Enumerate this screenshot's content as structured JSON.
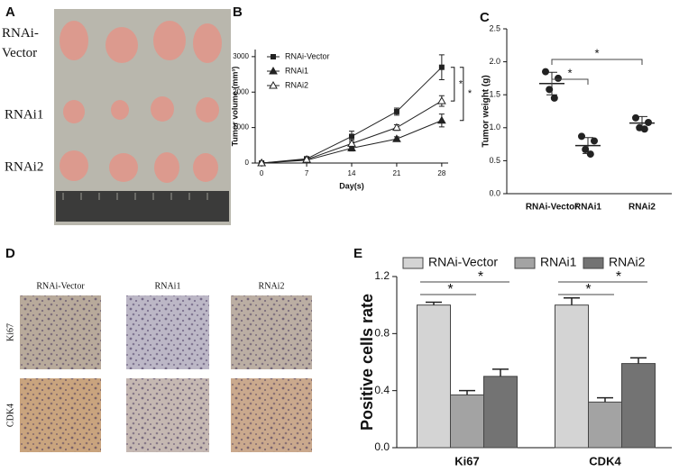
{
  "panel_labels": [
    "A",
    "B",
    "C",
    "D",
    "E"
  ],
  "photo_a": {
    "rows": [
      "RNAi-Vector",
      "RNAi1",
      "RNAi2"
    ]
  },
  "photo_d": {
    "columns": [
      "RNAi-Vector",
      "RNAi1",
      "RNAi2"
    ],
    "rows": [
      "Ki67",
      "CDK4"
    ]
  },
  "chart_data": [
    {
      "type": "line",
      "x_label": "Day(s)",
      "y_label": "Tumor volume (mm³)",
      "x": [
        0,
        7,
        14,
        21,
        28
      ],
      "xlim": [
        -1,
        29
      ],
      "xticks": [
        0,
        7,
        14,
        21,
        28
      ],
      "ylim": [
        0,
        3200
      ],
      "yticks": [
        0,
        1000,
        2000,
        3000
      ],
      "series": [
        {
          "name": "RNAi-Vector",
          "color": "#222222",
          "marker": "square",
          "values": [
            0,
            120,
            750,
            1450,
            2700
          ],
          "errors": [
            20,
            40,
            150,
            100,
            350
          ]
        },
        {
          "name": "RNAi1",
          "color": "#222222",
          "marker": "triangle",
          "values": [
            0,
            80,
            420,
            680,
            1200
          ],
          "errors": [
            20,
            30,
            80,
            60,
            180
          ]
        },
        {
          "name": "RNAi2",
          "color": "#222222",
          "marker": "triangle-open",
          "values": [
            0,
            100,
            550,
            1000,
            1750
          ],
          "errors": [
            20,
            30,
            100,
            80,
            150
          ]
        }
      ],
      "comparisons": [
        {
          "pair": [
            0,
            2
          ],
          "label": "*"
        },
        {
          "pair": [
            0,
            1
          ],
          "label": "*"
        }
      ]
    },
    {
      "type": "dotplot",
      "y_label": "Tumor weight (g)",
      "categories": [
        "RNAi-Vector",
        "RNAi1",
        "RNAi2"
      ],
      "points": [
        [
          1.85,
          1.75,
          1.58,
          1.45
        ],
        [
          0.87,
          0.8,
          0.67,
          0.6
        ],
        [
          1.15,
          1.08,
          1.0,
          0.98
        ]
      ],
      "means": [
        1.67,
        0.73,
        1.07
      ],
      "errors": [
        0.17,
        0.12,
        0.1
      ],
      "ylim": [
        0,
        2.5
      ],
      "yticks": [
        {
          "value": 0,
          "label": "0.0"
        },
        0.5,
        {
          "value": 1,
          "label": "1.0"
        },
        1.5,
        {
          "value": 2,
          "label": "2.0"
        },
        2.5
      ],
      "color": "#222222",
      "comparisons": [
        {
          "pair": [
            0,
            1
          ],
          "label": "*"
        },
        {
          "pair": [
            0,
            2
          ],
          "label": "*"
        }
      ]
    },
    {
      "type": "bar",
      "y_label": "Positive cells rate",
      "categories": [
        "Ki67",
        "CDK4"
      ],
      "series": [
        {
          "name": "RNAi-Vector",
          "color": "#d4d4d4",
          "values": [
            1.0,
            1.0
          ],
          "errors": [
            0.02,
            0.05
          ]
        },
        {
          "name": "RNAi1",
          "color": "#a3a3a3",
          "values": [
            0.37,
            0.32
          ],
          "errors": [
            0.03,
            0.03
          ]
        },
        {
          "name": "RNAi2",
          "color": "#737373",
          "values": [
            0.5,
            0.59
          ],
          "errors": [
            0.05,
            0.04
          ]
        }
      ],
      "ylim": [
        0,
        1.2
      ],
      "yticks": [
        {
          "value": 0,
          "label": "0.0"
        },
        0.4,
        0.8,
        1.2
      ],
      "comparisons": [
        {
          "pair": [
            0,
            1
          ],
          "label": "*"
        },
        {
          "pair": [
            0,
            2
          ],
          "label": "*"
        }
      ]
    }
  ]
}
